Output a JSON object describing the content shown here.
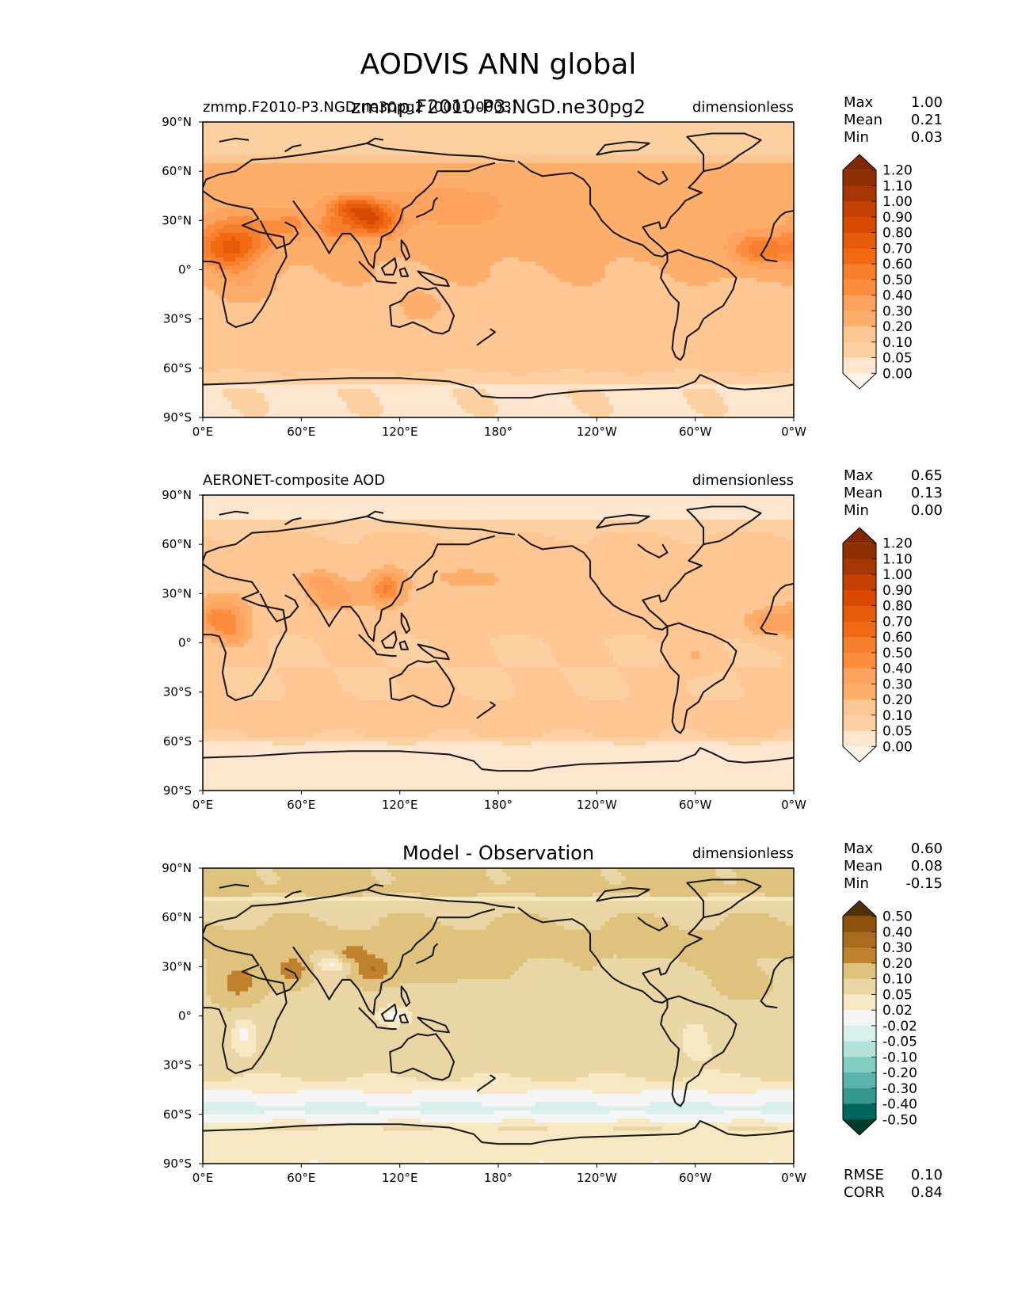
{
  "figure_title": "AODVIS ANN global",
  "chart_data": [
    {
      "type": "heatmap",
      "panel": "model",
      "title_left": "zmmp.F2010-P3.NGD.ne30pg2 (0001-0003)",
      "title_center": "zmmp.F2010-P3.NGD.ne30pg2",
      "title_right": "dimensionless",
      "xticks": [
        "0°E",
        "60°E",
        "120°E",
        "180°",
        "120°W",
        "60°W",
        "0°W"
      ],
      "yticks": [
        "90°N",
        "60°N",
        "30°N",
        "0°",
        "30°S",
        "60°S",
        "90°S"
      ],
      "xlim": [
        0,
        360
      ],
      "ylim": [
        -90,
        90
      ],
      "stats": [
        {
          "label": "Max",
          "value": "1.00"
        },
        {
          "label": "Mean",
          "value": "0.21"
        },
        {
          "label": "Min",
          "value": "0.03"
        }
      ],
      "colorbar_levels": [
        "1.20",
        "1.10",
        "1.00",
        "0.90",
        "0.80",
        "0.70",
        "0.60",
        "0.50",
        "0.40",
        "0.30",
        "0.20",
        "0.10",
        "0.05",
        "0.00"
      ],
      "colorbar_colors": [
        "#7f2704",
        "#8f2f04",
        "#a63603",
        "#c44103",
        "#d94801",
        "#e65a0b",
        "#f16913",
        "#f67f2e",
        "#fd8d3c",
        "#fda35f",
        "#fdae6b",
        "#fdc692",
        "#fdd0a2",
        "#fee6ce",
        "#fff5eb"
      ],
      "colormap": [
        "#fff5eb",
        "#fee6ce",
        "#fdd0a2",
        "#fdc692",
        "#fdae6b",
        "#fda35f",
        "#fd8d3c",
        "#f67f2e",
        "#f16913",
        "#e65a0b",
        "#d94801",
        "#c44103",
        "#a63603",
        "#8f2f04",
        "#7f2704"
      ],
      "bounds": [
        -1,
        0.0,
        0.05,
        0.1,
        0.2,
        0.3,
        0.4,
        0.5,
        0.6,
        0.7,
        0.8,
        0.9,
        1.0,
        1.1,
        1.2,
        9
      ],
      "field": {
        "type": "model",
        "bands": [
          [
            90,
            0.09
          ],
          [
            72,
            0.06
          ],
          [
            64,
            0.22
          ],
          [
            45,
            0.26
          ],
          [
            30,
            0.24
          ],
          [
            15,
            0.22
          ],
          [
            0,
            0.2
          ],
          [
            -15,
            0.19
          ],
          [
            -30,
            0.18
          ],
          [
            -45,
            0.17
          ],
          [
            -58,
            0.13
          ],
          [
            -70,
            0.05
          ],
          [
            -90,
            0.04
          ]
        ],
        "blobs": [
          [
            20,
            18,
            22,
            14,
            0.42
          ],
          [
            15,
            8,
            14,
            10,
            0.2
          ],
          [
            55,
            28,
            14,
            9,
            0.18
          ],
          [
            103,
            30,
            16,
            10,
            0.55
          ],
          [
            90,
            38,
            14,
            6,
            0.38
          ],
          [
            80,
            25,
            10,
            8,
            0.28
          ],
          [
            340,
            12,
            18,
            10,
            0.35
          ],
          [
            150,
            38,
            30,
            12,
            0.14
          ],
          [
            25,
            -8,
            12,
            10,
            0.1
          ],
          [
            132,
            -22,
            8,
            6,
            0.08
          ]
        ]
      }
    },
    {
      "type": "heatmap",
      "panel": "observation",
      "title_left": "AERONET-composite AOD",
      "title_center": "",
      "title_right": "dimensionless",
      "xticks": [
        "0°E",
        "60°E",
        "120°E",
        "180°",
        "120°W",
        "60°W",
        "0°W"
      ],
      "yticks": [
        "90°N",
        "60°N",
        "30°N",
        "0°",
        "30°S",
        "60°S",
        "90°S"
      ],
      "xlim": [
        0,
        360
      ],
      "ylim": [
        -90,
        90
      ],
      "stats": [
        {
          "label": "Max",
          "value": "0.65"
        },
        {
          "label": "Mean",
          "value": "0.13"
        },
        {
          "label": "Min",
          "value": "0.00"
        }
      ],
      "colorbar_levels": [
        "1.20",
        "1.10",
        "1.00",
        "0.90",
        "0.80",
        "0.70",
        "0.60",
        "0.50",
        "0.40",
        "0.30",
        "0.20",
        "0.10",
        "0.05",
        "0.00"
      ],
      "colorbar_colors": [
        "#7f2704",
        "#8f2f04",
        "#a63603",
        "#c44103",
        "#d94801",
        "#e65a0b",
        "#f16913",
        "#f67f2e",
        "#fd8d3c",
        "#fda35f",
        "#fdae6b",
        "#fdc692",
        "#fdd0a2",
        "#fee6ce",
        "#fff5eb"
      ],
      "colormap": [
        "#fff5eb",
        "#fee6ce",
        "#fdd0a2",
        "#fdc692",
        "#fdae6b",
        "#fda35f",
        "#fd8d3c",
        "#f67f2e",
        "#f16913",
        "#e65a0b",
        "#d94801",
        "#c44103",
        "#a63603",
        "#8f2f04",
        "#7f2704"
      ],
      "bounds": [
        -1,
        0.0,
        0.05,
        0.1,
        0.2,
        0.3,
        0.4,
        0.5,
        0.6,
        0.7,
        0.8,
        0.9,
        1.0,
        1.1,
        1.2,
        9
      ],
      "field": {
        "type": "obs",
        "bands": [
          [
            90,
            0.02
          ],
          [
            76,
            0.02
          ],
          [
            72,
            0.09
          ],
          [
            55,
            0.12
          ],
          [
            40,
            0.16
          ],
          [
            25,
            0.14
          ],
          [
            10,
            0.12
          ],
          [
            0,
            0.1
          ],
          [
            -15,
            0.1
          ],
          [
            -30,
            0.1
          ],
          [
            -45,
            0.12
          ],
          [
            -58,
            0.1
          ],
          [
            -62,
            0.03
          ],
          [
            -90,
            0.02
          ]
        ],
        "blobs": [
          [
            12,
            15,
            14,
            12,
            0.35
          ],
          [
            20,
            4,
            10,
            8,
            0.15
          ],
          [
            80,
            28,
            14,
            8,
            0.25
          ],
          [
            112,
            33,
            10,
            10,
            0.36
          ],
          [
            70,
            38,
            10,
            5,
            0.2
          ],
          [
            345,
            12,
            14,
            8,
            0.25
          ],
          [
            300,
            -8,
            10,
            8,
            0.1
          ],
          [
            160,
            40,
            30,
            10,
            0.06
          ]
        ]
      }
    },
    {
      "type": "heatmap",
      "panel": "difference",
      "title_left": "",
      "title_center": "Model - Observation",
      "title_right": "dimensionless",
      "xticks": [
        "0°E",
        "60°E",
        "120°E",
        "180°",
        "120°W",
        "60°W",
        "0°W"
      ],
      "yticks": [
        "90°N",
        "60°N",
        "30°N",
        "0°",
        "30°S",
        "60°S",
        "90°S"
      ],
      "xlim": [
        0,
        360
      ],
      "ylim": [
        -90,
        90
      ],
      "stats": [
        {
          "label": "Max",
          "value": "0.60"
        },
        {
          "label": "Mean",
          "value": "0.08"
        },
        {
          "label": "Min",
          "value": "-0.15"
        }
      ],
      "extra_stats": [
        {
          "label": "RMSE",
          "value": "0.10"
        },
        {
          "label": "CORR",
          "value": "0.84"
        }
      ],
      "colorbar_levels": [
        "0.50",
        "0.40",
        "0.30",
        "0.20",
        "0.10",
        "0.05",
        "0.02",
        "-0.02",
        "-0.05",
        "-0.10",
        "-0.20",
        "-0.30",
        "-0.40",
        "-0.50"
      ],
      "colorbar_colors": [
        "#543005",
        "#8c510a",
        "#a86b1f",
        "#bf812d",
        "#dfc27d",
        "#e9d6a4",
        "#f6e8c3",
        "#f5f5f5",
        "#d8efec",
        "#b4e2da",
        "#80cdc1",
        "#5ab4ac",
        "#35978f",
        "#01665e",
        "#003c30"
      ],
      "colormap": [
        "#003c30",
        "#01665e",
        "#35978f",
        "#5ab4ac",
        "#80cdc1",
        "#b4e2da",
        "#d8efec",
        "#f5f5f5",
        "#f6e8c3",
        "#e9d6a4",
        "#dfc27d",
        "#bf812d",
        "#a86b1f",
        "#8c510a",
        "#543005"
      ],
      "bounds": [
        -9,
        -0.5,
        -0.4,
        -0.3,
        -0.2,
        -0.1,
        -0.05,
        -0.02,
        0.02,
        0.05,
        0.1,
        0.2,
        0.3,
        0.4,
        0.5,
        9
      ],
      "field": {
        "type": "diff",
        "bands": [
          [
            90,
            0.11
          ],
          [
            74,
            0.11
          ],
          [
            72,
            0.03
          ],
          [
            64,
            0.09
          ],
          [
            45,
            0.12
          ],
          [
            30,
            0.1
          ],
          [
            15,
            0.08
          ],
          [
            0,
            0.07
          ],
          [
            -15,
            0.07
          ],
          [
            -30,
            0.07
          ],
          [
            -42,
            0.04
          ],
          [
            -50,
            0.0
          ],
          [
            -57,
            -0.04
          ],
          [
            -62,
            0.0
          ],
          [
            -68,
            0.05
          ],
          [
            -90,
            0.03
          ]
        ],
        "blobs": [
          [
            22,
            20,
            14,
            12,
            0.16
          ],
          [
            55,
            28,
            10,
            8,
            0.18
          ],
          [
            92,
            38,
            8,
            5,
            0.18
          ],
          [
            103,
            28,
            10,
            8,
            0.2
          ],
          [
            330,
            18,
            14,
            8,
            0.08
          ],
          [
            140,
            30,
            22,
            10,
            0.06
          ],
          [
            25,
            -10,
            8,
            12,
            -0.06
          ],
          [
            80,
            32,
            14,
            6,
            -0.08
          ],
          [
            300,
            -12,
            10,
            16,
            -0.04
          ],
          [
            250,
            28,
            10,
            8,
            -0.04
          ],
          [
            115,
            0,
            10,
            6,
            -0.05
          ]
        ]
      }
    }
  ]
}
